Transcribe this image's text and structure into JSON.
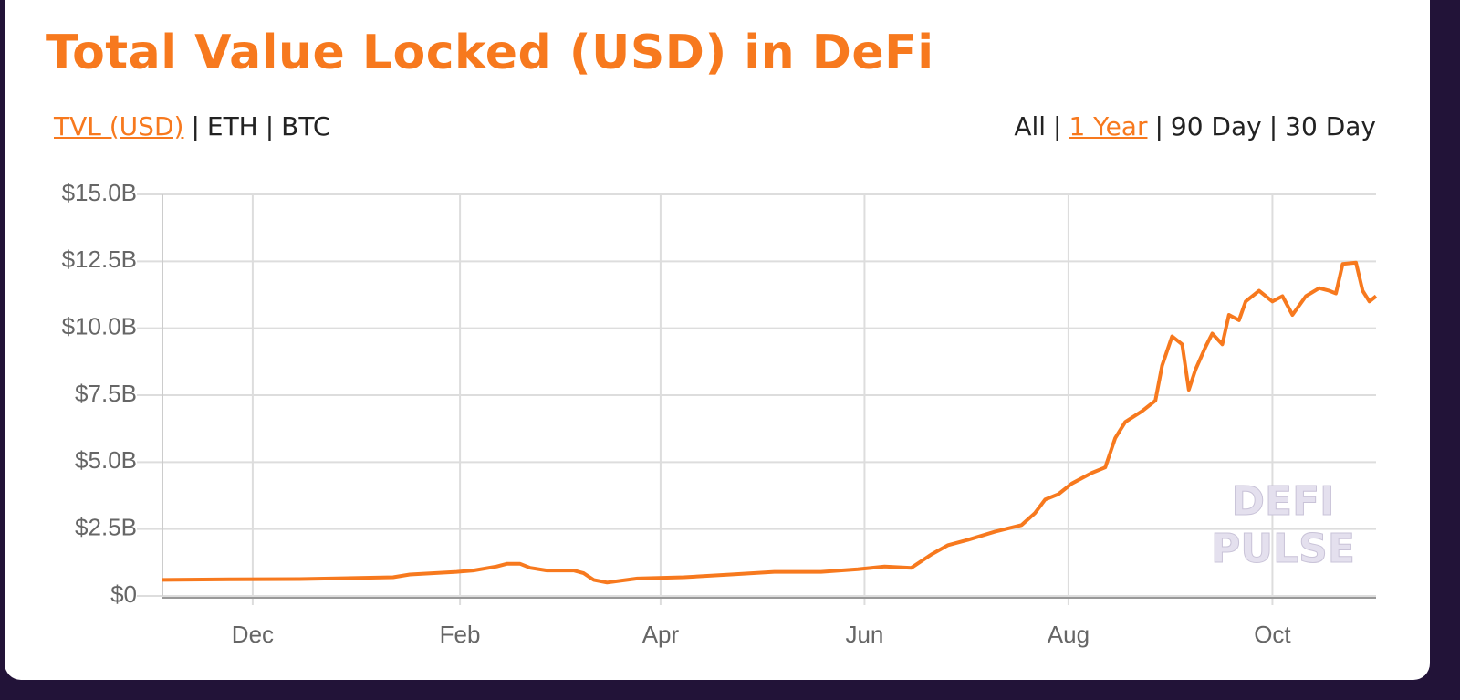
{
  "header": {
    "title": "Total Value Locked (USD) in DeFi"
  },
  "separator": "|",
  "units_toggle": {
    "options": [
      "TVL (USD)",
      "ETH",
      "BTC"
    ],
    "active": 0
  },
  "range_toggle": {
    "options": [
      "All",
      "1 Year",
      "90 Day",
      "30 Day"
    ],
    "active": 1
  },
  "watermark": [
    "DEFI",
    "PULSE"
  ],
  "chart_data": {
    "type": "line",
    "color": "#f7791e",
    "grid": true,
    "x": [
      0,
      20,
      41,
      69,
      74,
      88,
      93,
      100,
      103,
      107,
      110,
      115,
      123,
      126,
      129,
      133,
      142,
      156,
      170,
      183,
      197,
      208,
      216,
      224,
      230,
      235,
      241,
      249,
      257,
      261,
      264,
      268,
      272,
      278,
      282,
      285,
      288,
      293,
      297,
      299,
      302,
      305,
      307,
      309,
      312,
      314,
      317,
      319,
      322,
      324,
      328,
      332,
      335,
      338,
      342,
      346,
      349,
      351,
      353,
      357,
      359,
      361,
      363
    ],
    "values": [
      0.6,
      0.62,
      0.63,
      0.7,
      0.8,
      0.9,
      0.95,
      1.1,
      1.2,
      1.2,
      1.05,
      0.95,
      0.95,
      0.85,
      0.6,
      0.5,
      0.65,
      0.7,
      0.8,
      0.9,
      0.9,
      1.0,
      1.1,
      1.05,
      1.55,
      1.9,
      2.1,
      2.4,
      2.65,
      3.1,
      3.6,
      3.8,
      4.2,
      4.6,
      4.8,
      5.9,
      6.5,
      6.9,
      7.3,
      8.6,
      9.7,
      9.4,
      7.7,
      8.45,
      9.3,
      9.8,
      9.4,
      10.5,
      10.3,
      11.0,
      11.4,
      11.0,
      11.2,
      10.5,
      11.2,
      11.5,
      11.4,
      11.3,
      12.4,
      12.45,
      11.4,
      11.0,
      11.2
    ],
    "xlim": [
      0,
      363
    ],
    "xticks": [
      {
        "value": 27,
        "label": "Dec"
      },
      {
        "value": 89,
        "label": "Feb"
      },
      {
        "value": 149,
        "label": "Apr"
      },
      {
        "value": 210,
        "label": "Jun"
      },
      {
        "value": 271,
        "label": "Aug"
      },
      {
        "value": 332,
        "label": "Oct"
      }
    ],
    "ylim": [
      0,
      15
    ],
    "yticks": [
      {
        "value": 0,
        "label": "$0"
      },
      {
        "value": 2.5,
        "label": "$2.5B"
      },
      {
        "value": 5,
        "label": "$5.0B"
      },
      {
        "value": 7.5,
        "label": "$7.5B"
      },
      {
        "value": 10,
        "label": "$10.0B"
      },
      {
        "value": 12.5,
        "label": "$12.5B"
      },
      {
        "value": 15,
        "label": "$15.0B"
      }
    ]
  }
}
